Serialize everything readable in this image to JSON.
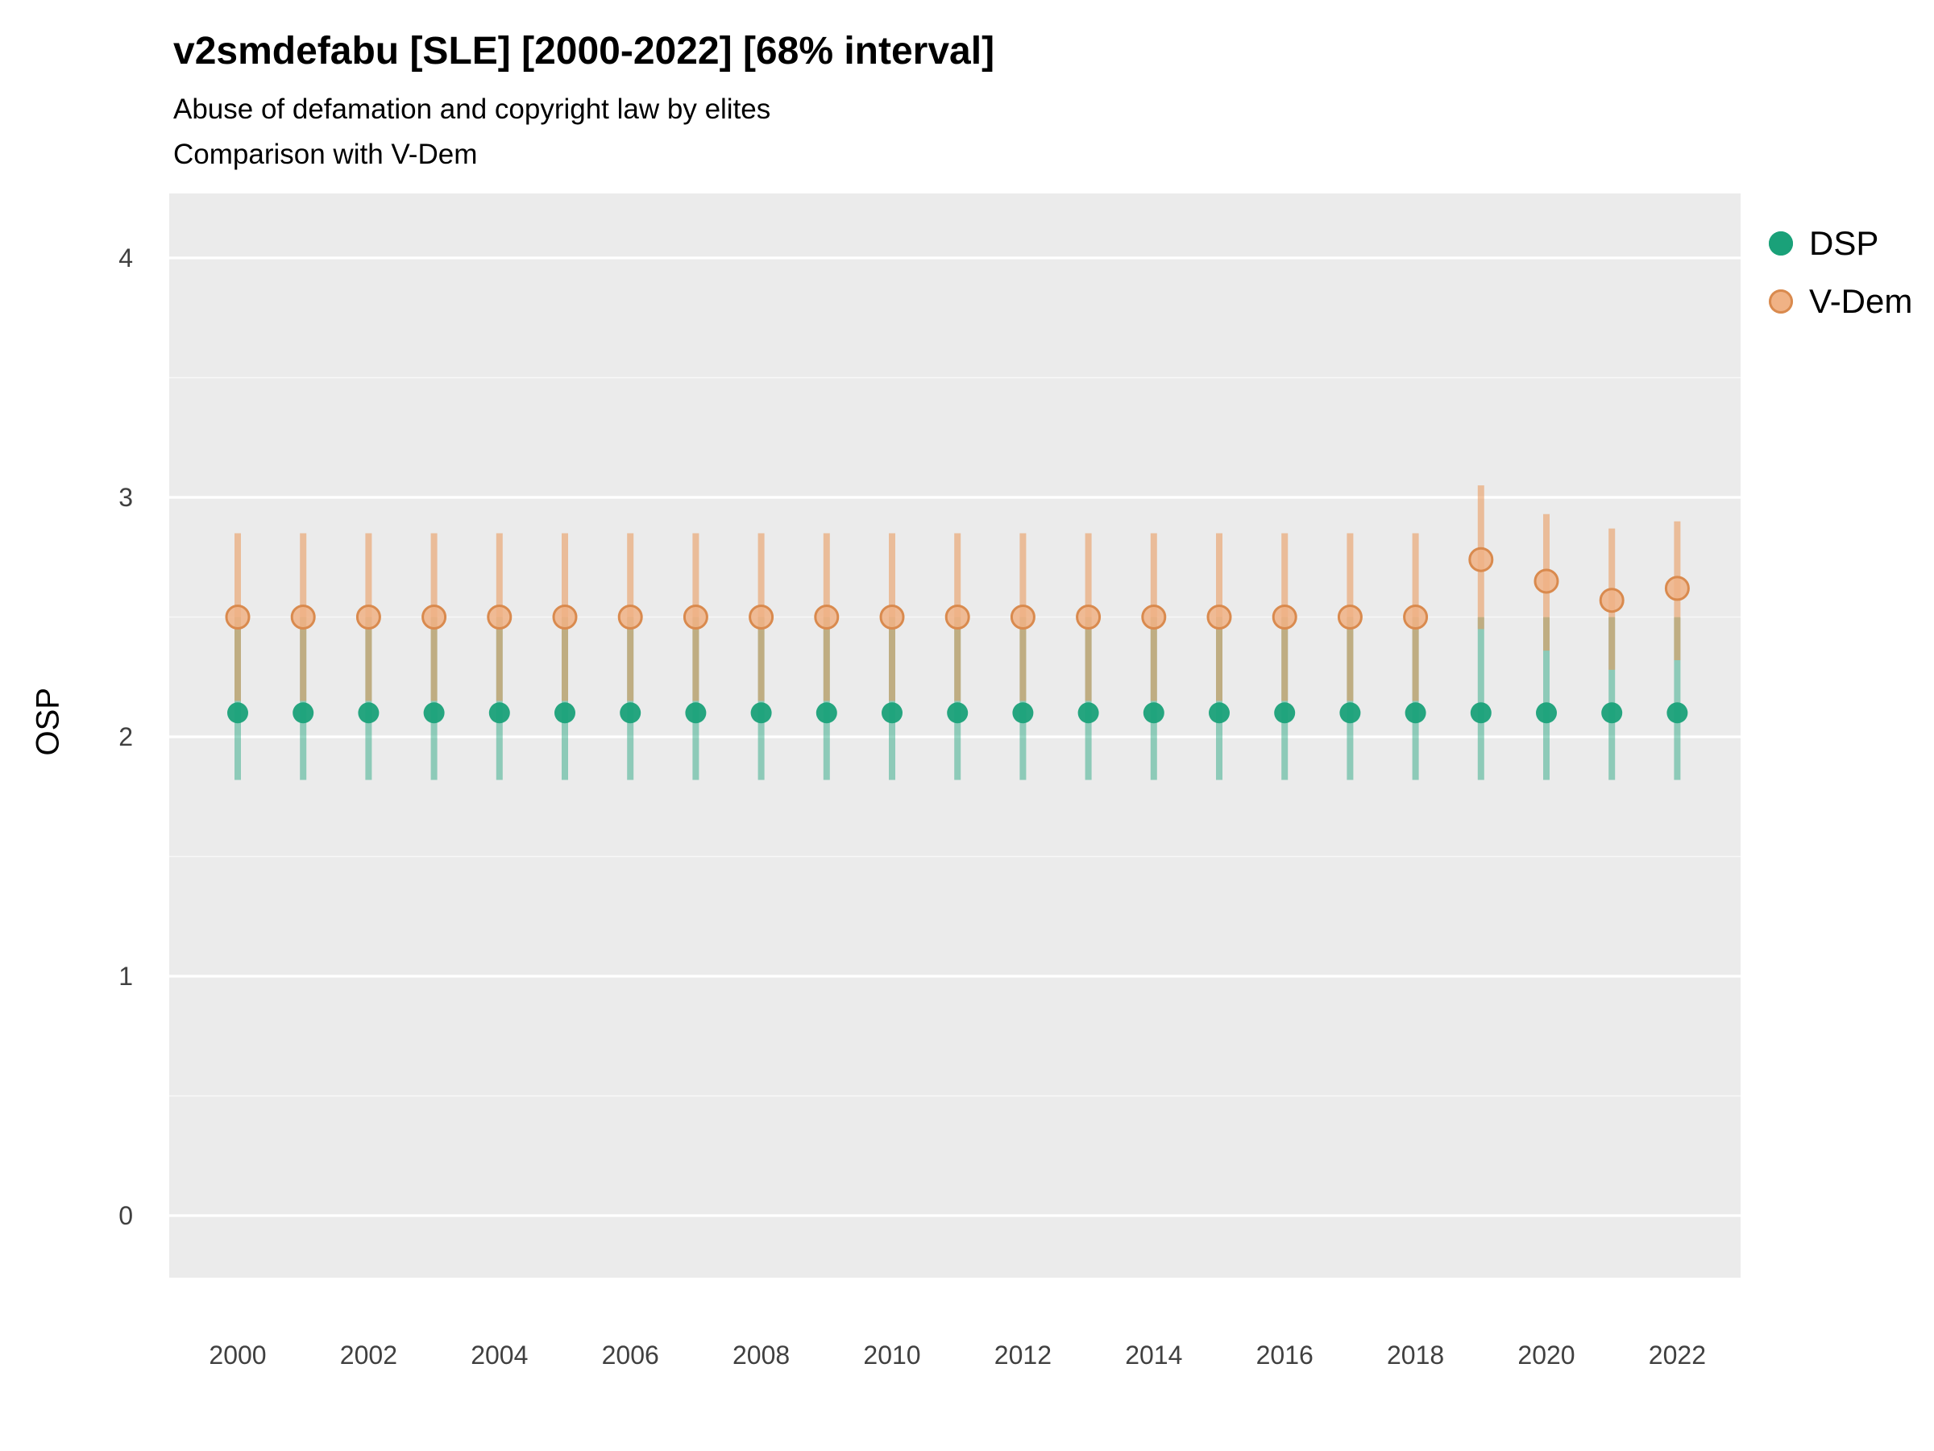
{
  "header": {
    "title": "v2smdefabu [SLE] [2000-2022] [68% interval]",
    "subtitle1": "Abuse of defamation and copyright law by elites",
    "subtitle2": "Comparison with V-Dem"
  },
  "axes": {
    "y_label": "OSP",
    "y_ticks": [
      0,
      1,
      2,
      3,
      4
    ],
    "y_minor_ticks": [
      0.5,
      1.5,
      2.5,
      3.5
    ],
    "x_tick_years": [
      2000,
      2002,
      2004,
      2006,
      2008,
      2010,
      2012,
      2014,
      2016,
      2018,
      2020,
      2022
    ],
    "panel_color": "#EBEBEB",
    "gridline_color": "#FFFFFF",
    "tick_text_color": "#404040"
  },
  "chart_data": {
    "type": "scatter",
    "title": "v2smdefabu [SLE] [2000-2022] [68% interval]",
    "subtitle": "Abuse of defamation and copyright law by elites",
    "note": "Comparison with V-Dem",
    "interval": "68%",
    "xlabel": "",
    "ylabel": "OSP",
    "ylim": [
      0,
      4
    ],
    "x": [
      2000,
      2001,
      2002,
      2003,
      2004,
      2005,
      2006,
      2007,
      2008,
      2009,
      2010,
      2011,
      2012,
      2013,
      2014,
      2015,
      2016,
      2017,
      2018,
      2019,
      2020,
      2021,
      2022
    ],
    "series": [
      {
        "name": "DSP",
        "color": "#1AA179",
        "bar_color": "rgba(26,161,121,0.45)",
        "point_stroke": "#14896B",
        "estimates": [
          2.1,
          2.1,
          2.1,
          2.1,
          2.1,
          2.1,
          2.1,
          2.1,
          2.1,
          2.1,
          2.1,
          2.1,
          2.1,
          2.1,
          2.1,
          2.1,
          2.1,
          2.1,
          2.1,
          2.1,
          2.1,
          2.1,
          2.1
        ],
        "lower": [
          1.82,
          1.82,
          1.82,
          1.82,
          1.82,
          1.82,
          1.82,
          1.82,
          1.82,
          1.82,
          1.82,
          1.82,
          1.82,
          1.82,
          1.82,
          1.82,
          1.82,
          1.82,
          1.82,
          1.82,
          1.82,
          1.82,
          1.82
        ],
        "upper": [
          2.5,
          2.5,
          2.5,
          2.5,
          2.5,
          2.5,
          2.5,
          2.5,
          2.5,
          2.5,
          2.5,
          2.5,
          2.5,
          2.5,
          2.5,
          2.5,
          2.5,
          2.5,
          2.5,
          2.5,
          2.5,
          2.5,
          2.5
        ]
      },
      {
        "name": "V-Dem",
        "color": "#F0B285",
        "bar_color": "rgba(233,150,85,0.55)",
        "point_stroke": "#D98A4E",
        "estimates": [
          2.5,
          2.5,
          2.5,
          2.5,
          2.5,
          2.5,
          2.5,
          2.5,
          2.5,
          2.5,
          2.5,
          2.5,
          2.5,
          2.5,
          2.5,
          2.5,
          2.5,
          2.5,
          2.5,
          2.74,
          2.65,
          2.57,
          2.62
        ],
        "lower": [
          2.15,
          2.15,
          2.15,
          2.15,
          2.15,
          2.15,
          2.15,
          2.15,
          2.15,
          2.15,
          2.15,
          2.15,
          2.15,
          2.15,
          2.15,
          2.15,
          2.15,
          2.15,
          2.15,
          2.45,
          2.36,
          2.28,
          2.32
        ],
        "upper": [
          2.85,
          2.85,
          2.85,
          2.85,
          2.85,
          2.85,
          2.85,
          2.85,
          2.85,
          2.85,
          2.85,
          2.85,
          2.85,
          2.85,
          2.85,
          2.85,
          2.85,
          2.85,
          2.85,
          3.05,
          2.93,
          2.87,
          2.9
        ]
      }
    ],
    "legend_position": "right"
  }
}
